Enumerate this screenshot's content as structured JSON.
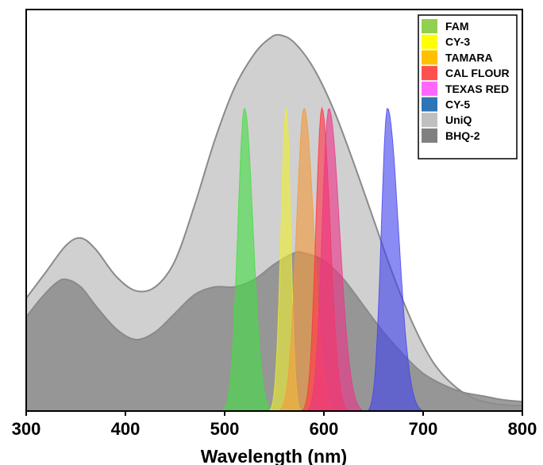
{
  "chart_data": {
    "type": "area",
    "title": "",
    "xlabel": "Wavelength (nm)",
    "ylabel": "",
    "xlim": [
      300,
      800
    ],
    "ylim": [
      0,
      1.0
    ],
    "xticks": [
      300,
      400,
      500,
      600,
      700,
      800
    ],
    "grid": false,
    "legend_position": "top-right",
    "legend": [
      {
        "label": "FAM",
        "color": "#92d050"
      },
      {
        "label": "CY-3",
        "color": "#ffff00"
      },
      {
        "label": "TAMARA",
        "color": "#ffc000"
      },
      {
        "label": "CAL FLOUR",
        "color": "#ff5050"
      },
      {
        "label": "TEXAS RED",
        "color": "#ff66ff"
      },
      {
        "label": "CY-5",
        "color": "#2e75b6"
      },
      {
        "label": "UniQ",
        "color": "#bfbfbf"
      },
      {
        "label": "BHQ-2",
        "color": "#808080"
      }
    ],
    "series": [
      {
        "name": "UniQ",
        "kind": "broad",
        "color": "#c8c8c8",
        "x": [
          300,
          320,
          340,
          355,
          370,
          390,
          410,
          430,
          450,
          470,
          490,
          510,
          530,
          545,
          555,
          570,
          590,
          610,
          630,
          650,
          670,
          690,
          710,
          730,
          750,
          770,
          790,
          800
        ],
        "y": [
          0.3,
          0.37,
          0.44,
          0.46,
          0.43,
          0.36,
          0.32,
          0.33,
          0.4,
          0.55,
          0.72,
          0.86,
          0.95,
          0.99,
          1.0,
          0.98,
          0.91,
          0.8,
          0.66,
          0.51,
          0.36,
          0.23,
          0.13,
          0.07,
          0.035,
          0.02,
          0.015,
          0.015
        ]
      },
      {
        "name": "BHQ-2",
        "kind": "broad",
        "color": "#8c8c8c",
        "x": [
          300,
          315,
          330,
          340,
          355,
          370,
          390,
          410,
          430,
          450,
          470,
          490,
          510,
          530,
          550,
          570,
          580,
          600,
          620,
          640,
          660,
          680,
          700,
          720,
          740,
          760,
          780,
          800
        ],
        "y": [
          0.25,
          0.3,
          0.34,
          0.35,
          0.33,
          0.28,
          0.22,
          0.19,
          0.21,
          0.26,
          0.31,
          0.33,
          0.33,
          0.35,
          0.39,
          0.42,
          0.42,
          0.4,
          0.35,
          0.28,
          0.21,
          0.15,
          0.1,
          0.07,
          0.05,
          0.04,
          0.03,
          0.025
        ]
      },
      {
        "name": "FAM",
        "kind": "peak",
        "color": "#44dd44",
        "peak": 520,
        "height": 0.81,
        "left": 498,
        "right": 548
      },
      {
        "name": "CY-3",
        "kind": "peak",
        "color": "#eeee33",
        "peak": 562,
        "height": 0.81,
        "left": 545,
        "right": 577
      },
      {
        "name": "TAMARA",
        "kind": "peak",
        "color": "#f29a3d",
        "peak": 580,
        "height": 0.81,
        "left": 555,
        "right": 612
      },
      {
        "name": "CAL FLOUR",
        "kind": "peak",
        "color": "#ff3344",
        "peak": 598,
        "height": 0.81,
        "left": 578,
        "right": 625
      },
      {
        "name": "TEXAS RED",
        "kind": "peak",
        "color": "#ee3388",
        "peak": 605,
        "height": 0.81,
        "left": 583,
        "right": 640
      },
      {
        "name": "CY-5",
        "kind": "peak",
        "color": "#4444ee",
        "peak": 664,
        "height": 0.81,
        "left": 644,
        "right": 700
      }
    ]
  }
}
